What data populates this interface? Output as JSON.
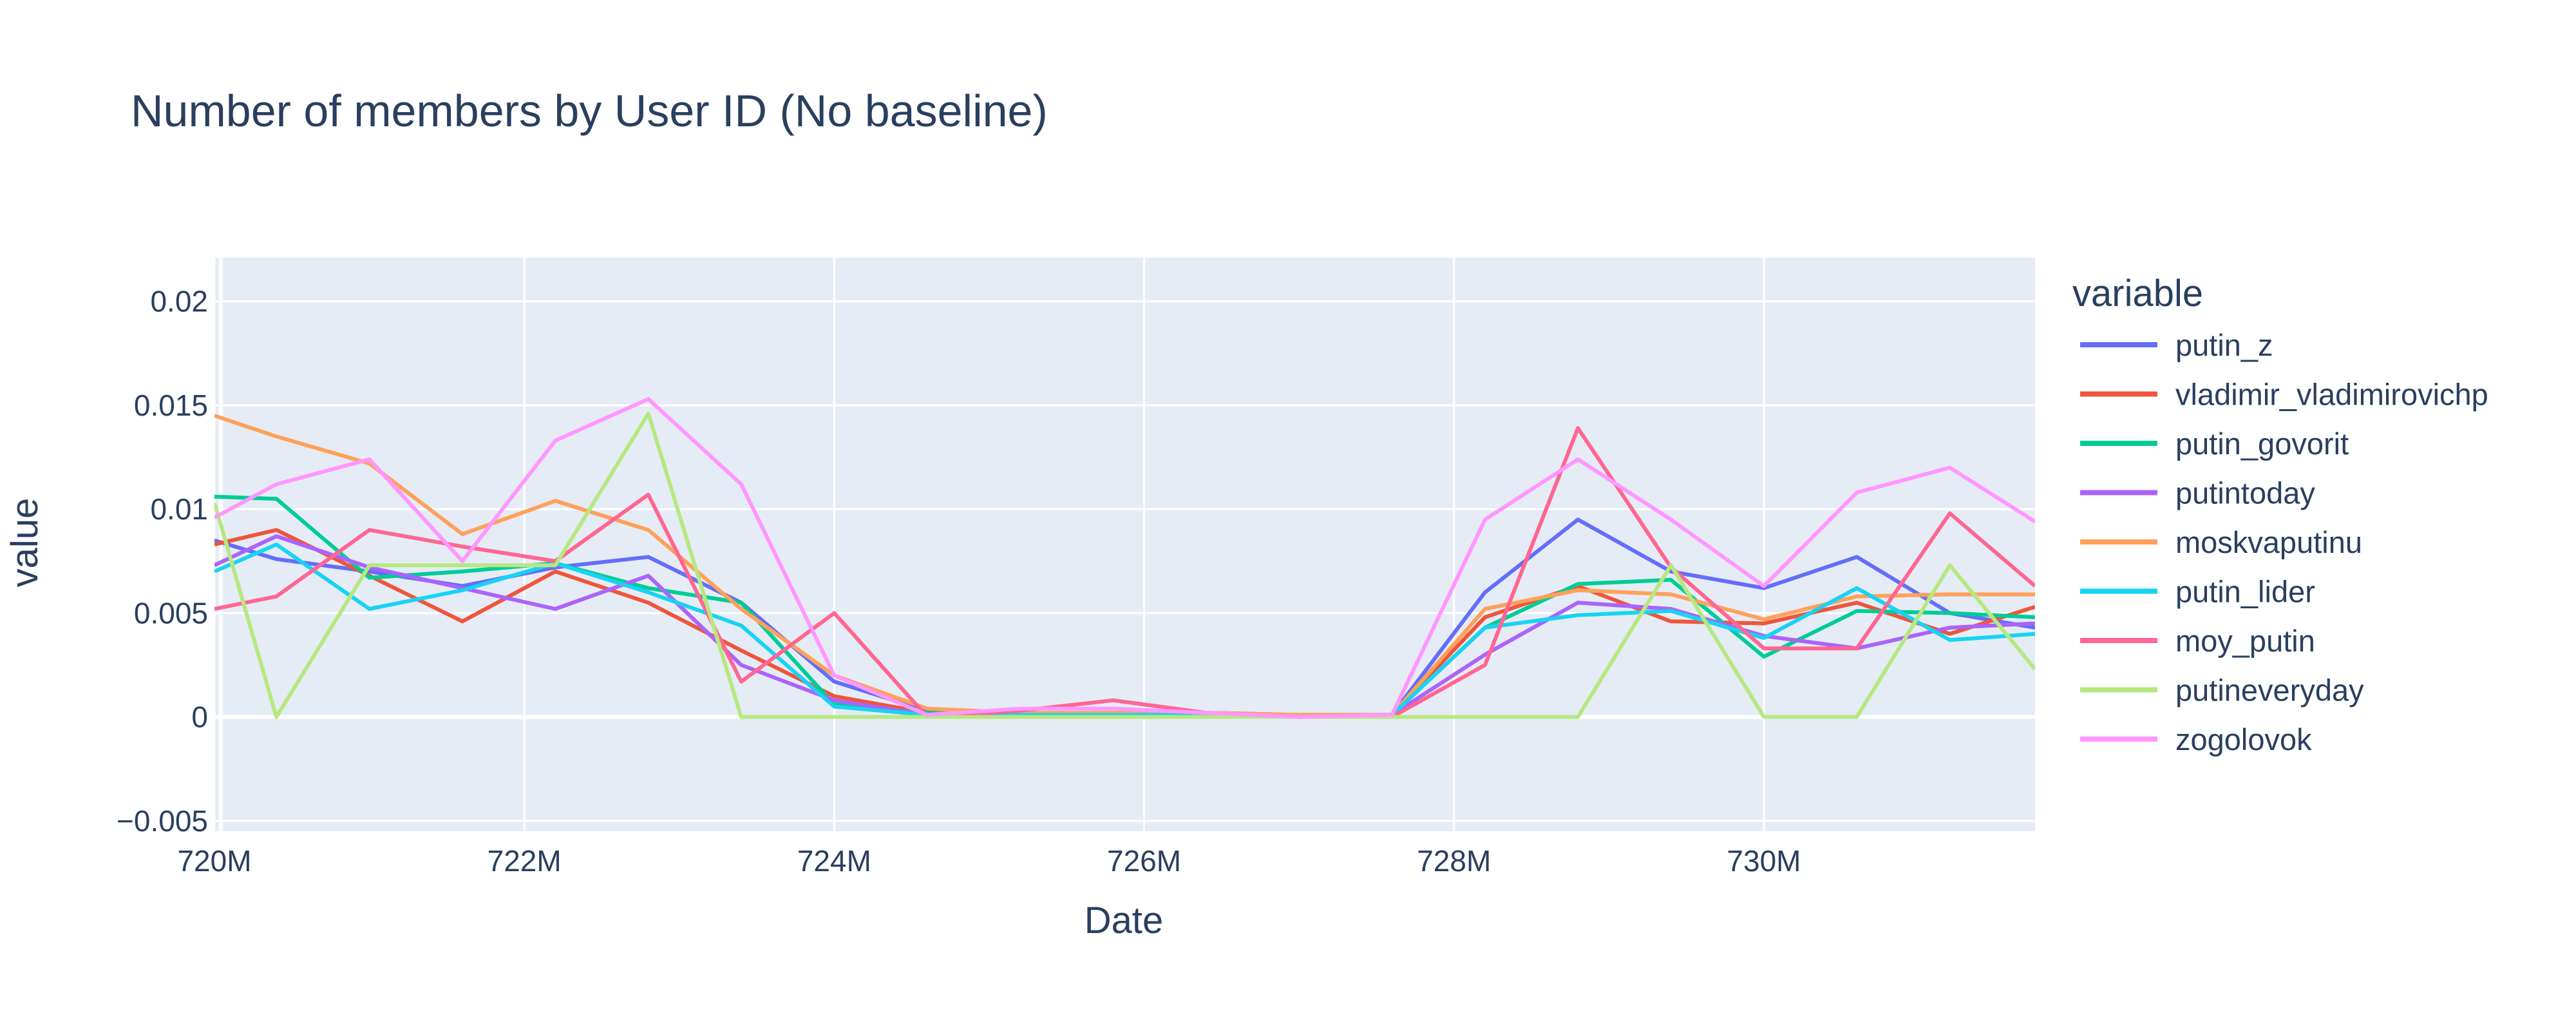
{
  "chart_data": {
    "type": "line",
    "title": "Number of members by User ID  (No baseline)",
    "xlabel": "Date",
    "ylabel": "value",
    "xlim": [
      720.0,
      731.75
    ],
    "ylim": [
      -0.0055,
      0.0221
    ],
    "xticks": [
      {
        "value": 720,
        "label": "720M"
      },
      {
        "value": 722,
        "label": "722M"
      },
      {
        "value": 724,
        "label": "724M"
      },
      {
        "value": 726,
        "label": "726M"
      },
      {
        "value": 728,
        "label": "728M"
      },
      {
        "value": 730,
        "label": "730M"
      }
    ],
    "yticks": [
      {
        "value": -0.005,
        "label": "−0.005"
      },
      {
        "value": 0,
        "label": "0"
      },
      {
        "value": 0.005,
        "label": "0.005"
      },
      {
        "value": 0.01,
        "label": "0.01"
      },
      {
        "value": 0.015,
        "label": "0.015"
      },
      {
        "value": 0.02,
        "label": "0.02"
      }
    ],
    "legend_title": "variable",
    "legend_position": "right",
    "x": [
      720.0,
      720.4,
      721.0,
      721.6,
      722.2,
      722.8,
      723.4,
      724.0,
      724.6,
      725.2,
      725.8,
      726.4,
      727.0,
      727.6,
      728.2,
      728.8,
      729.4,
      730.0,
      730.6,
      731.2,
      731.75
    ],
    "series": [
      {
        "name": "putin_z",
        "color": "#636efa",
        "values": [
          0.0085,
          0.0076,
          0.007,
          0.0063,
          0.0072,
          0.0077,
          0.0055,
          0.0017,
          0.0003,
          0.0001,
          0.0001,
          0.0001,
          0.0,
          0.0001,
          0.006,
          0.0095,
          0.007,
          0.0062,
          0.0077,
          0.005,
          0.0043
        ]
      },
      {
        "name": "vladimir_vladimirovichp",
        "color": "#EF553B",
        "values": [
          0.0083,
          0.009,
          0.0068,
          0.0046,
          0.007,
          0.0055,
          0.0032,
          0.001,
          0.0002,
          0.0001,
          0.0002,
          0.0002,
          0.0001,
          0.0001,
          0.0048,
          0.0063,
          0.0046,
          0.0045,
          0.0055,
          0.004,
          0.0053
        ]
      },
      {
        "name": "putin_govorit",
        "color": "#00cc96",
        "values": [
          0.0106,
          0.0105,
          0.0067,
          0.007,
          0.0074,
          0.0062,
          0.0055,
          0.0006,
          0.0002,
          0.0001,
          0.0001,
          0.0001,
          0.0,
          0.0001,
          0.0043,
          0.0064,
          0.0066,
          0.0029,
          0.0051,
          0.005,
          0.0048
        ]
      },
      {
        "name": "putintoday",
        "color": "#ab63fa",
        "values": [
          0.0073,
          0.0087,
          0.0072,
          0.0062,
          0.0052,
          0.0068,
          0.0025,
          0.0008,
          0.0001,
          0.0001,
          0.0001,
          0.0001,
          0.0,
          0.0001,
          0.003,
          0.0055,
          0.0052,
          0.0039,
          0.0033,
          0.0043,
          0.0045
        ]
      },
      {
        "name": "moskvaputinu",
        "color": "#FFA15A",
        "values": [
          0.0145,
          0.0135,
          0.0122,
          0.0088,
          0.0104,
          0.009,
          0.0052,
          0.002,
          0.0004,
          0.0002,
          0.0002,
          0.0002,
          0.0001,
          0.0001,
          0.0052,
          0.0061,
          0.0059,
          0.0047,
          0.0058,
          0.0059,
          0.0059
        ]
      },
      {
        "name": "putin_lider",
        "color": "#19d3f3",
        "values": [
          0.007,
          0.0083,
          0.0052,
          0.0061,
          0.0074,
          0.006,
          0.0044,
          0.0005,
          0.0001,
          0.0001,
          0.0001,
          0.0001,
          0.0,
          0.0001,
          0.0043,
          0.0049,
          0.0051,
          0.0038,
          0.0062,
          0.0037,
          0.004
        ]
      },
      {
        "name": "moy_putin",
        "color": "#FF6692",
        "values": [
          0.0052,
          0.0058,
          0.009,
          0.0082,
          0.0075,
          0.0107,
          0.0017,
          0.005,
          0.0,
          0.0003,
          0.0008,
          0.0002,
          0.0,
          0.0,
          0.0025,
          0.0139,
          0.0072,
          0.0033,
          0.0033,
          0.0098,
          0.0063
        ]
      },
      {
        "name": "putineveryday",
        "color": "#B6E880",
        "values": [
          0.0103,
          0.0,
          0.0073,
          0.0073,
          0.0073,
          0.0146,
          0.0,
          0.0,
          0.0,
          0.0,
          0.0,
          0.0,
          0.0,
          0.0,
          0.0,
          0.0,
          0.0073,
          0.0,
          0.0,
          0.0073,
          0.0023
        ]
      },
      {
        "name": "zogolovok",
        "color": "#FF97FF",
        "values": [
          0.0096,
          0.0112,
          0.0124,
          0.0075,
          0.0133,
          0.0153,
          0.0112,
          0.002,
          0.0001,
          0.0004,
          0.0004,
          0.0002,
          0.0,
          0.0001,
          0.0095,
          0.0124,
          0.0095,
          0.0063,
          0.0108,
          0.012,
          0.0094
        ]
      }
    ]
  }
}
